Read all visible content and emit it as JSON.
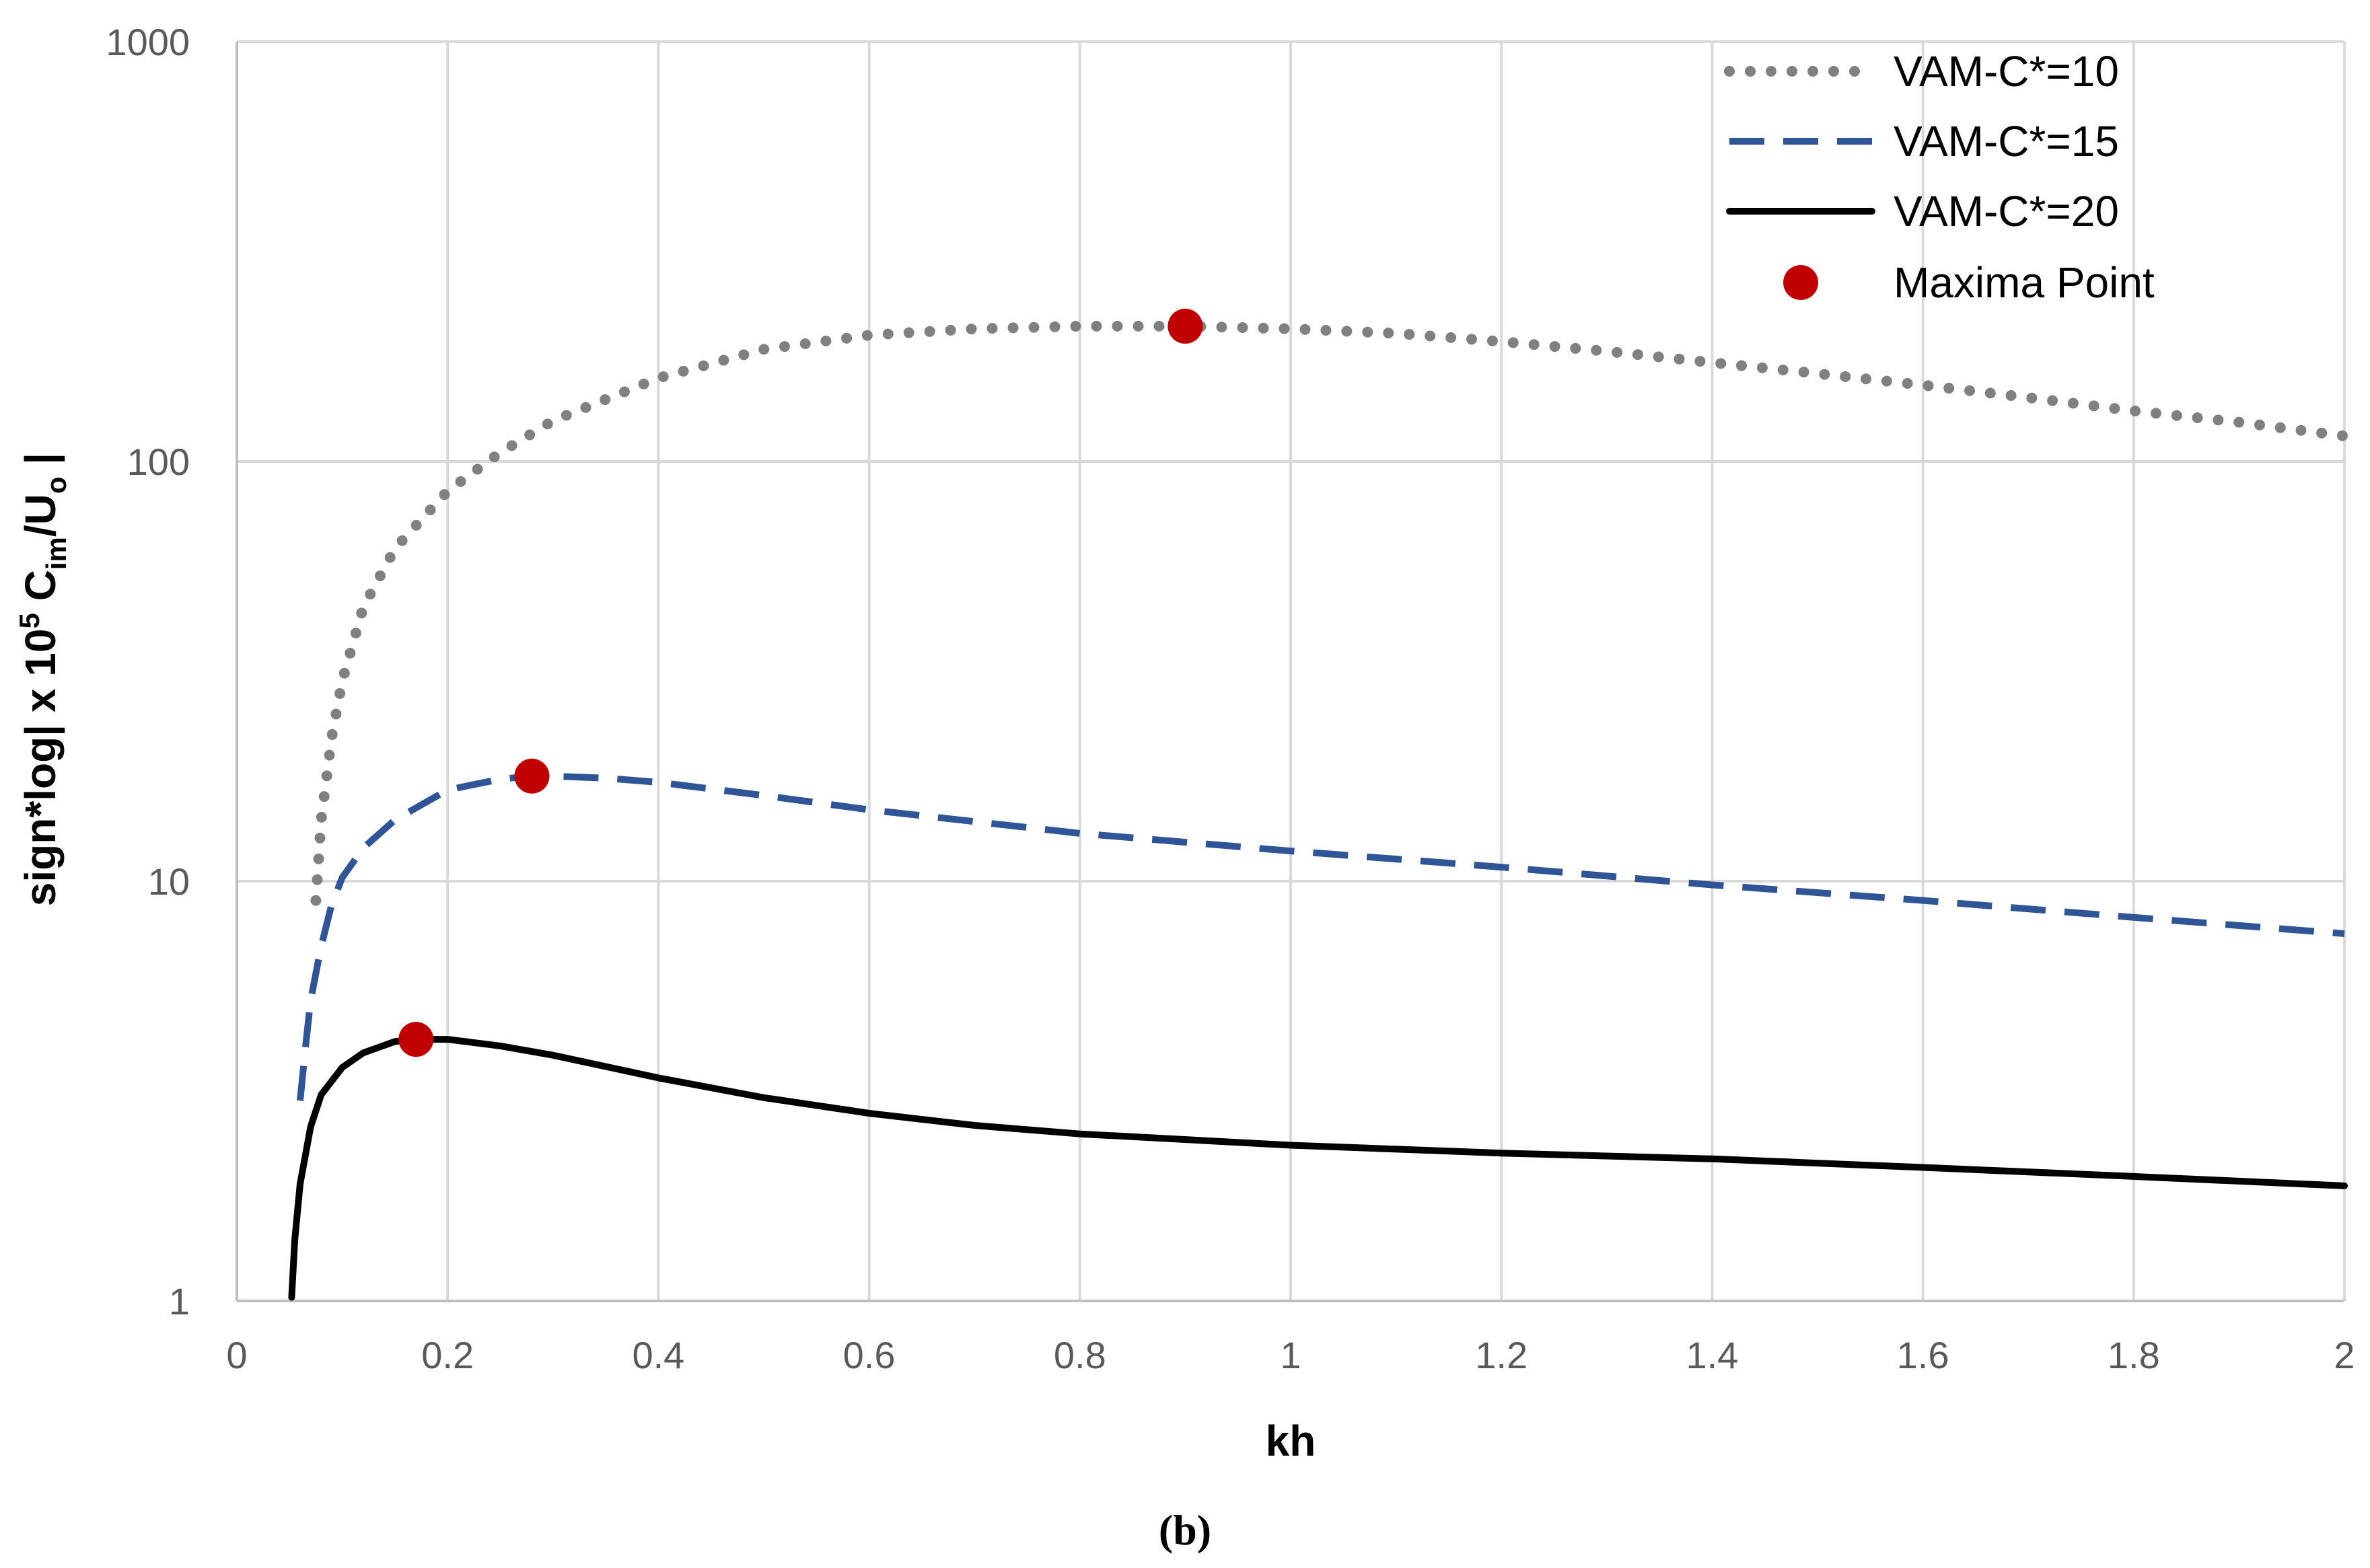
{
  "chart_data": {
    "type": "line",
    "title": "",
    "caption": "(b)",
    "xlabel": "kh",
    "ylabel": "sign*log| x 10⁵ Cᵢₘ/Uₒ |",
    "ylabel_parts": {
      "main": "sign*log| x 10",
      "sup": "5",
      "mid": " C",
      "sub_im": "im",
      "slash_u": "/U",
      "sub_o": "o",
      "tail": " |"
    },
    "x_scale": "linear",
    "y_scale": "log",
    "xlim": [
      0,
      2
    ],
    "ylim": [
      1,
      1000
    ],
    "x_ticks": [
      0,
      0.2,
      0.4,
      0.6,
      0.8,
      1,
      1.2,
      1.4,
      1.6,
      1.8,
      2
    ],
    "x_tick_labels": [
      "0",
      "0.2",
      "0.4",
      "0.6",
      "0.8",
      "1",
      "1.2",
      "1.4",
      "1.6",
      "1.8",
      "2"
    ],
    "y_ticks": [
      1,
      10,
      100,
      1000
    ],
    "y_tick_labels": [
      "1",
      "10",
      "100",
      "1000"
    ],
    "grid": true,
    "legend_position": "top-right",
    "series": [
      {
        "name": "VAM-C*=10",
        "style": "dotted",
        "color": "#808080",
        "x": [
          0.075,
          0.08,
          0.09,
          0.1,
          0.12,
          0.15,
          0.2,
          0.25,
          0.3,
          0.4,
          0.5,
          0.6,
          0.7,
          0.8,
          0.9,
          1.0,
          1.1,
          1.2,
          1.3,
          1.4,
          1.5,
          1.6,
          1.7,
          1.8,
          1.9,
          2.0
        ],
        "y": [
          9,
          14,
          22,
          30,
          45,
          62,
          85,
          105,
          125,
          158,
          185,
          200,
          207,
          210,
          210,
          207,
          202,
          193,
          183,
          172,
          162,
          152,
          142,
          132,
          124,
          115
        ]
      },
      {
        "name": "VAM-C*=15",
        "style": "dashed",
        "color": "#2F5597",
        "x": [
          0.06,
          0.065,
          0.07,
          0.08,
          0.09,
          0.1,
          0.12,
          0.15,
          0.2,
          0.25,
          0.28,
          0.3,
          0.35,
          0.4,
          0.5,
          0.6,
          0.8,
          1.0,
          1.2,
          1.4,
          1.6,
          1.8,
          2.0
        ],
        "y": [
          3.0,
          4.0,
          5.2,
          7.0,
          8.8,
          10.2,
          12.0,
          14.0,
          16.5,
          17.5,
          17.8,
          17.8,
          17.6,
          17.2,
          16.0,
          14.8,
          13.0,
          11.8,
          10.8,
          9.8,
          9.0,
          8.2,
          7.5
        ]
      },
      {
        "name": "VAM-C*=20",
        "style": "solid",
        "color": "#000000",
        "x": [
          0.052,
          0.055,
          0.06,
          0.07,
          0.08,
          0.1,
          0.12,
          0.15,
          0.17,
          0.2,
          0.25,
          0.3,
          0.4,
          0.5,
          0.6,
          0.7,
          0.8,
          1.0,
          1.2,
          1.4,
          1.6,
          1.8,
          2.0
        ],
        "y": [
          1.02,
          1.4,
          1.9,
          2.6,
          3.1,
          3.6,
          3.9,
          4.15,
          4.2,
          4.2,
          4.05,
          3.85,
          3.4,
          3.05,
          2.8,
          2.62,
          2.5,
          2.35,
          2.25,
          2.18,
          2.08,
          1.98,
          1.88
        ]
      }
    ],
    "maxima_points": {
      "name": "Maxima Point",
      "color": "#C00000",
      "points": [
        {
          "x": 0.9,
          "y": 210
        },
        {
          "x": 0.28,
          "y": 17.8
        },
        {
          "x": 0.17,
          "y": 4.2
        }
      ]
    }
  }
}
